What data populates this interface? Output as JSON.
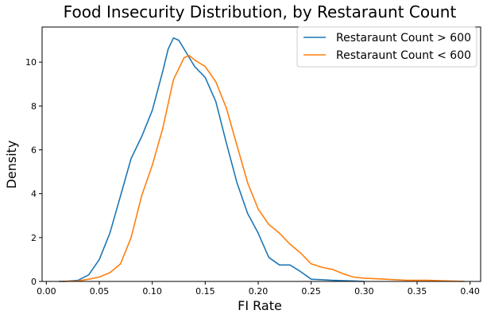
{
  "chart_data": {
    "type": "line",
    "title": "Food Insecurity Distribution, by Restaraunt Count",
    "xlabel": "FI Rate",
    "ylabel": "Density",
    "xlim": [
      -0.004,
      0.41
    ],
    "ylim": [
      0,
      11.6
    ],
    "xticks": [
      0.0,
      0.05,
      0.1,
      0.15,
      0.2,
      0.25,
      0.3,
      0.35,
      0.4
    ],
    "xtick_labels": [
      "0.00",
      "0.05",
      "0.10",
      "0.15",
      "0.20",
      "0.25",
      "0.30",
      "0.35",
      "0.40"
    ],
    "yticks": [
      0,
      2,
      4,
      6,
      8,
      10
    ],
    "ytick_labels": [
      "0",
      "2",
      "4",
      "6",
      "8",
      "10"
    ],
    "grid": false,
    "legend_position": "top-right",
    "series": [
      {
        "name": "Restaraunt Count > 600",
        "color": "#1f77b4",
        "points": [
          [
            0.012,
            0.0
          ],
          [
            0.02,
            0.01
          ],
          [
            0.03,
            0.05
          ],
          [
            0.04,
            0.3
          ],
          [
            0.05,
            1.0
          ],
          [
            0.06,
            2.2
          ],
          [
            0.07,
            3.9
          ],
          [
            0.08,
            5.6
          ],
          [
            0.09,
            6.6
          ],
          [
            0.1,
            7.8
          ],
          [
            0.11,
            9.6
          ],
          [
            0.115,
            10.6
          ],
          [
            0.12,
            11.1
          ],
          [
            0.125,
            11.0
          ],
          [
            0.13,
            10.6
          ],
          [
            0.135,
            10.2
          ],
          [
            0.14,
            9.8
          ],
          [
            0.15,
            9.3
          ],
          [
            0.16,
            8.2
          ],
          [
            0.17,
            6.3
          ],
          [
            0.18,
            4.5
          ],
          [
            0.19,
            3.1
          ],
          [
            0.2,
            2.2
          ],
          [
            0.21,
            1.1
          ],
          [
            0.22,
            0.75
          ],
          [
            0.23,
            0.75
          ],
          [
            0.24,
            0.45
          ],
          [
            0.25,
            0.1
          ],
          [
            0.27,
            0.05
          ],
          [
            0.29,
            0.02
          ],
          [
            0.3,
            0.0
          ]
        ]
      },
      {
        "name": "Restaraunt Count < 600",
        "color": "#ff7f0e",
        "points": [
          [
            0.015,
            0.0
          ],
          [
            0.03,
            0.02
          ],
          [
            0.04,
            0.1
          ],
          [
            0.05,
            0.2
          ],
          [
            0.06,
            0.4
          ],
          [
            0.07,
            0.8
          ],
          [
            0.08,
            2.0
          ],
          [
            0.09,
            3.9
          ],
          [
            0.1,
            5.3
          ],
          [
            0.11,
            7.0
          ],
          [
            0.12,
            9.2
          ],
          [
            0.13,
            10.2
          ],
          [
            0.135,
            10.3
          ],
          [
            0.14,
            10.1
          ],
          [
            0.15,
            9.8
          ],
          [
            0.16,
            9.1
          ],
          [
            0.17,
            7.9
          ],
          [
            0.18,
            6.2
          ],
          [
            0.19,
            4.5
          ],
          [
            0.2,
            3.3
          ],
          [
            0.21,
            2.6
          ],
          [
            0.22,
            2.2
          ],
          [
            0.23,
            1.7
          ],
          [
            0.24,
            1.3
          ],
          [
            0.25,
            0.8
          ],
          [
            0.26,
            0.65
          ],
          [
            0.27,
            0.55
          ],
          [
            0.28,
            0.35
          ],
          [
            0.29,
            0.2
          ],
          [
            0.3,
            0.15
          ],
          [
            0.32,
            0.1
          ],
          [
            0.34,
            0.05
          ],
          [
            0.36,
            0.05
          ],
          [
            0.38,
            0.02
          ],
          [
            0.395,
            0.0
          ]
        ]
      }
    ]
  }
}
